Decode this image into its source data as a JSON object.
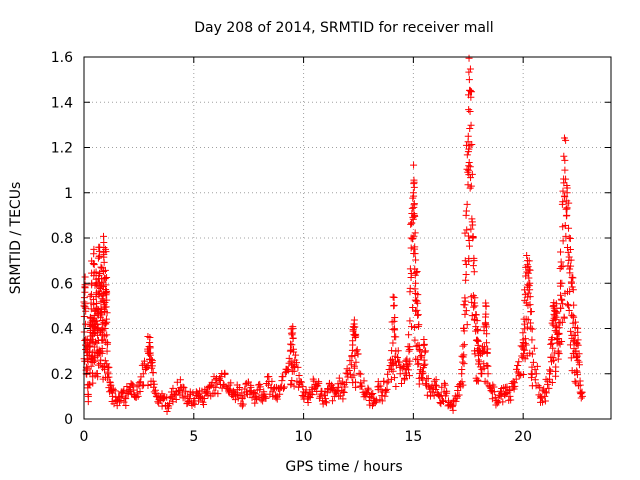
{
  "chart_data": {
    "type": "scatter",
    "title": "Day 208 of 2014, SRMTID for receiver mall",
    "xlabel": "GPS time / hours",
    "ylabel": "SRMTID / TECUs",
    "xlim": [
      0,
      24
    ],
    "ylim": [
      0,
      1.6
    ],
    "x_ticks": [
      0,
      5,
      10,
      15,
      20
    ],
    "y_ticks": [
      0,
      0.2,
      0.4,
      0.6,
      0.8,
      1,
      1.2,
      1.4,
      1.6
    ],
    "x_tick_labels": [
      "0",
      "5",
      "10",
      "15",
      "20"
    ],
    "y_tick_labels": [
      "0",
      "0.2",
      "0.4",
      "0.6",
      "0.8",
      "1",
      "1.2",
      "1.4",
      "1.6"
    ],
    "grid": true,
    "marker": "+",
    "marker_color": "#ff0000",
    "series_anchors": [
      {
        "name": "SRMTID",
        "points": [
          [
            0.0,
            0.5
          ],
          [
            0.05,
            0.58
          ],
          [
            0.1,
            0.2
          ],
          [
            0.15,
            0.35
          ],
          [
            0.2,
            0.1
          ],
          [
            0.25,
            0.3
          ],
          [
            0.3,
            0.45
          ],
          [
            0.35,
            0.6
          ],
          [
            0.4,
            0.25
          ],
          [
            0.45,
            0.75
          ],
          [
            0.5,
            0.4
          ],
          [
            0.55,
            0.65
          ],
          [
            0.6,
            0.3
          ],
          [
            0.65,
            0.55
          ],
          [
            0.7,
            0.72
          ],
          [
            0.75,
            0.45
          ],
          [
            0.8,
            0.62
          ],
          [
            0.85,
            0.35
          ],
          [
            0.9,
            0.78
          ],
          [
            0.95,
            0.4
          ],
          [
            1.0,
            0.74
          ],
          [
            1.05,
            0.3
          ],
          [
            1.1,
            0.2
          ],
          [
            1.2,
            0.15
          ],
          [
            1.3,
            0.1
          ],
          [
            1.5,
            0.08
          ],
          [
            1.7,
            0.12
          ],
          [
            1.9,
            0.09
          ],
          [
            2.1,
            0.14
          ],
          [
            2.3,
            0.1
          ],
          [
            2.5,
            0.15
          ],
          [
            2.7,
            0.2
          ],
          [
            2.9,
            0.3
          ],
          [
            3.0,
            0.36
          ],
          [
            3.1,
            0.25
          ],
          [
            3.2,
            0.12
          ],
          [
            3.4,
            0.07
          ],
          [
            3.6,
            0.09
          ],
          [
            3.8,
            0.06
          ],
          [
            4.0,
            0.1
          ],
          [
            4.2,
            0.12
          ],
          [
            4.4,
            0.14
          ],
          [
            4.6,
            0.1
          ],
          [
            4.8,
            0.09
          ],
          [
            5.0,
            0.08
          ],
          [
            5.2,
            0.11
          ],
          [
            5.4,
            0.09
          ],
          [
            5.6,
            0.12
          ],
          [
            5.8,
            0.15
          ],
          [
            6.0,
            0.14
          ],
          [
            6.2,
            0.17
          ],
          [
            6.4,
            0.2
          ],
          [
            6.6,
            0.15
          ],
          [
            6.8,
            0.1
          ],
          [
            7.0,
            0.13
          ],
          [
            7.2,
            0.09
          ],
          [
            7.4,
            0.12
          ],
          [
            7.6,
            0.14
          ],
          [
            7.8,
            0.1
          ],
          [
            8.0,
            0.13
          ],
          [
            8.2,
            0.11
          ],
          [
            8.4,
            0.15
          ],
          [
            8.6,
            0.12
          ],
          [
            8.8,
            0.1
          ],
          [
            9.0,
            0.14
          ],
          [
            9.2,
            0.22
          ],
          [
            9.4,
            0.3
          ],
          [
            9.5,
            0.38
          ],
          [
            9.6,
            0.26
          ],
          [
            9.8,
            0.16
          ],
          [
            10.0,
            0.12
          ],
          [
            10.2,
            0.1
          ],
          [
            10.4,
            0.13
          ],
          [
            10.6,
            0.15
          ],
          [
            10.8,
            0.11
          ],
          [
            11.0,
            0.09
          ],
          [
            11.2,
            0.13
          ],
          [
            11.4,
            0.1
          ],
          [
            11.6,
            0.14
          ],
          [
            11.8,
            0.12
          ],
          [
            12.0,
            0.2
          ],
          [
            12.2,
            0.28
          ],
          [
            12.3,
            0.42
          ],
          [
            12.4,
            0.3
          ],
          [
            12.6,
            0.16
          ],
          [
            12.8,
            0.12
          ],
          [
            13.0,
            0.1
          ],
          [
            13.2,
            0.09
          ],
          [
            13.4,
            0.13
          ],
          [
            13.6,
            0.12
          ],
          [
            13.8,
            0.16
          ],
          [
            14.0,
            0.22
          ],
          [
            14.1,
            0.5
          ],
          [
            14.2,
            0.3
          ],
          [
            14.4,
            0.2
          ],
          [
            14.6,
            0.18
          ],
          [
            14.7,
            0.24
          ],
          [
            14.8,
            0.3
          ],
          [
            14.9,
            0.8
          ],
          [
            15.0,
            1.0
          ],
          [
            15.05,
            0.9
          ],
          [
            15.1,
            0.6
          ],
          [
            15.2,
            0.55
          ],
          [
            15.3,
            0.3
          ],
          [
            15.4,
            0.2
          ],
          [
            15.5,
            0.33
          ],
          [
            15.6,
            0.15
          ],
          [
            15.8,
            0.12
          ],
          [
            16.0,
            0.15
          ],
          [
            16.2,
            0.1
          ],
          [
            16.4,
            0.12
          ],
          [
            16.6,
            0.08
          ],
          [
            16.8,
            0.06
          ],
          [
            17.0,
            0.1
          ],
          [
            17.2,
            0.2
          ],
          [
            17.3,
            0.4
          ],
          [
            17.4,
            0.9
          ],
          [
            17.5,
            1.25
          ],
          [
            17.55,
            1.5
          ],
          [
            17.6,
            1.45
          ],
          [
            17.7,
            0.8
          ],
          [
            17.8,
            0.5
          ],
          [
            17.9,
            0.35
          ],
          [
            18.0,
            0.3
          ],
          [
            18.1,
            0.2
          ],
          [
            18.2,
            0.3
          ],
          [
            18.3,
            0.5
          ],
          [
            18.4,
            0.2
          ],
          [
            18.6,
            0.12
          ],
          [
            18.8,
            0.08
          ],
          [
            19.0,
            0.1
          ],
          [
            19.2,
            0.14
          ],
          [
            19.4,
            0.1
          ],
          [
            19.6,
            0.16
          ],
          [
            19.8,
            0.2
          ],
          [
            20.0,
            0.35
          ],
          [
            20.1,
            0.55
          ],
          [
            20.2,
            0.7
          ],
          [
            20.3,
            0.6
          ],
          [
            20.4,
            0.35
          ],
          [
            20.6,
            0.2
          ],
          [
            20.8,
            0.1
          ],
          [
            21.0,
            0.12
          ],
          [
            21.2,
            0.2
          ],
          [
            21.3,
            0.35
          ],
          [
            21.4,
            0.5
          ],
          [
            21.5,
            0.45
          ],
          [
            21.6,
            0.3
          ],
          [
            21.7,
            0.6
          ],
          [
            21.8,
            0.85
          ],
          [
            21.9,
            1.1
          ],
          [
            22.0,
            1.0
          ],
          [
            22.1,
            0.8
          ],
          [
            22.2,
            0.6
          ],
          [
            22.3,
            0.45
          ],
          [
            22.4,
            0.3
          ],
          [
            22.5,
            0.35
          ],
          [
            22.6,
            0.15
          ],
          [
            22.7,
            0.1
          ]
        ]
      }
    ]
  }
}
